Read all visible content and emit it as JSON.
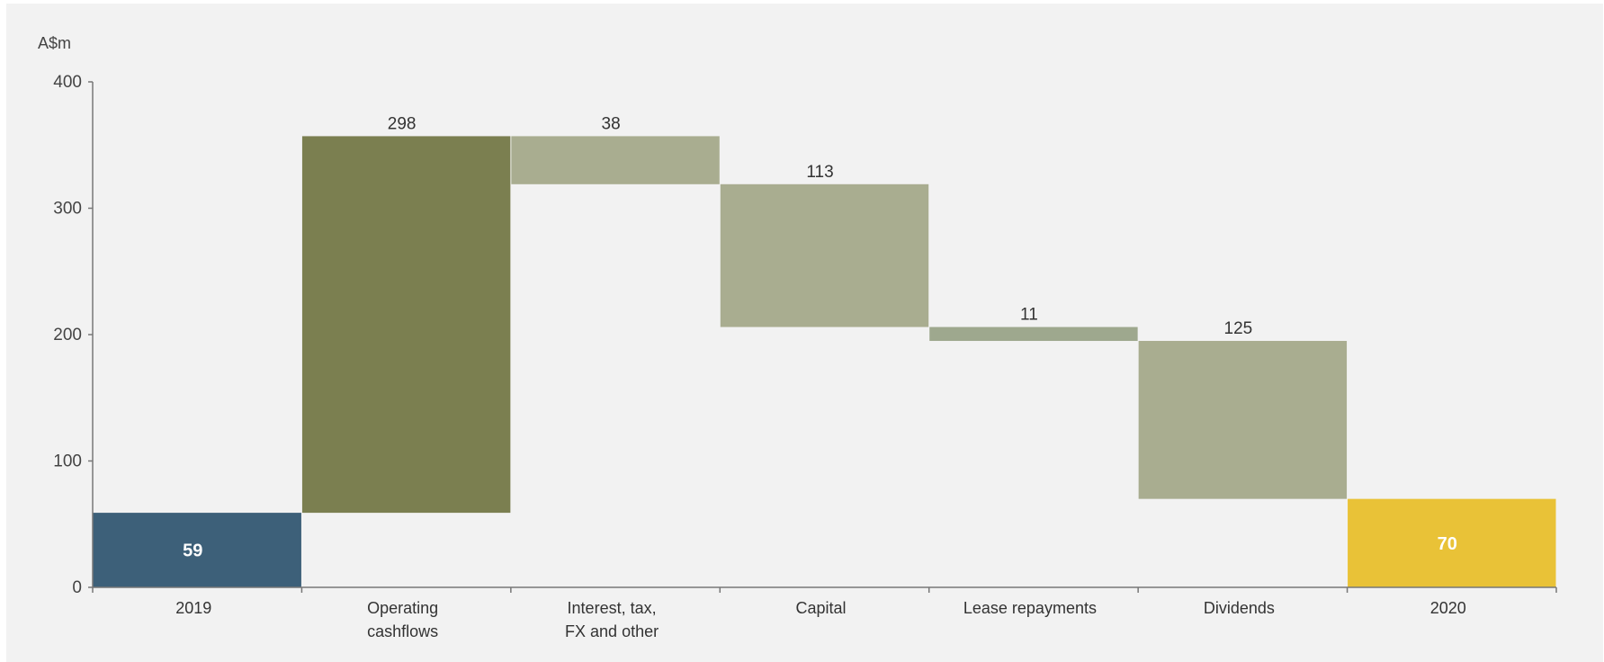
{
  "chart_data": {
    "type": "waterfall",
    "ylabel": "A$m",
    "ylim": [
      0,
      400
    ],
    "yticks": [
      0,
      100,
      200,
      300,
      400
    ],
    "grid": false,
    "categories": [
      {
        "label_lines": [
          "2019"
        ],
        "kind": "total",
        "value": 59,
        "value_label": "59",
        "color": "#3d6079"
      },
      {
        "label_lines": [
          "Operating",
          "cashflows"
        ],
        "kind": "increase",
        "value": 298,
        "value_label": "298",
        "color": "#7b7f50"
      },
      {
        "label_lines": [
          "Interest, tax,",
          "FX and other"
        ],
        "kind": "decrease",
        "value": 38,
        "value_label": "38",
        "color": "#a9ad90"
      },
      {
        "label_lines": [
          "Capital"
        ],
        "kind": "decrease",
        "value": 113,
        "value_label": "113",
        "color": "#a9ad90"
      },
      {
        "label_lines": [
          "Lease repayments"
        ],
        "kind": "decrease",
        "value": 11,
        "value_label": "11",
        "color": "#9ea88e"
      },
      {
        "label_lines": [
          "Dividends"
        ],
        "kind": "decrease",
        "value": 125,
        "value_label": "125",
        "color": "#a9ad90"
      },
      {
        "label_lines": [
          "2020"
        ],
        "kind": "total",
        "value": 70,
        "value_label": "70",
        "color": "#e9c237"
      }
    ]
  }
}
